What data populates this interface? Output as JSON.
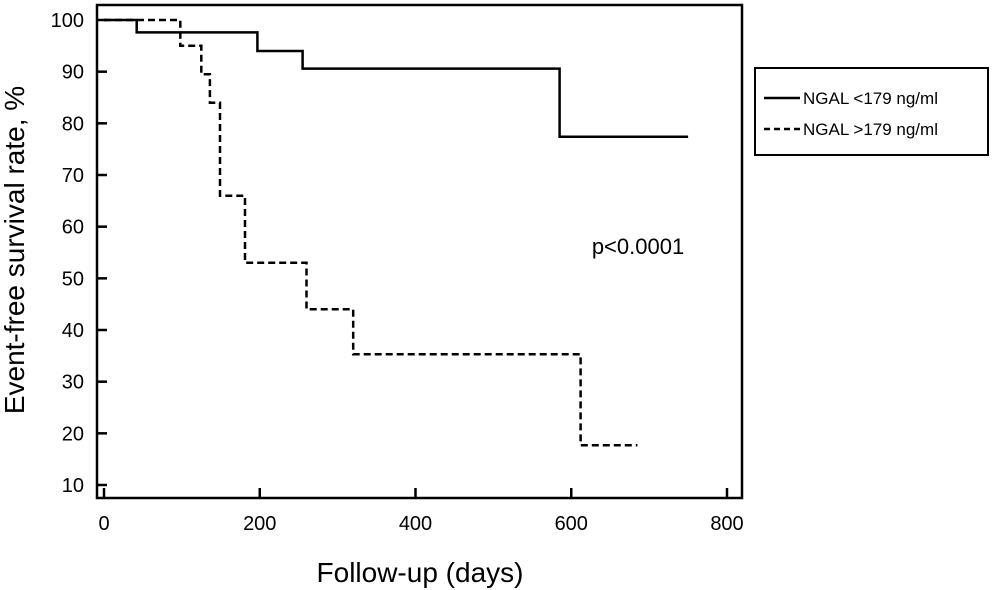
{
  "chart_data": {
    "type": "line",
    "subtype": "kaplan-meier step curves",
    "xlabel": "Follow-up (days)",
    "ylabel": "Event-free survival rate, %",
    "xlim": [
      0,
      800
    ],
    "ylim": [
      8,
      100
    ],
    "xticks": [
      0,
      200,
      400,
      600,
      800
    ],
    "yticks": [
      10,
      20,
      30,
      40,
      50,
      60,
      70,
      80,
      90,
      100
    ],
    "grid": false,
    "legend_position": "right, outside plot",
    "annotation": "p<0.0001",
    "series": [
      {
        "name": "NGAL <179 ng/ml",
        "line_style": "solid",
        "steps": [
          [
            0,
            100
          ],
          [
            42,
            97.6
          ],
          [
            197,
            94
          ],
          [
            255,
            90.6
          ],
          [
            585,
            77.4
          ],
          [
            750,
            77.4
          ]
        ]
      },
      {
        "name": "NGAL >179 ng/ml",
        "line_style": "dashed",
        "steps": [
          [
            0,
            100
          ],
          [
            98,
            95
          ],
          [
            125,
            89.5
          ],
          [
            136,
            84
          ],
          [
            149,
            66
          ],
          [
            181,
            53
          ],
          [
            260,
            44
          ],
          [
            320,
            35.3
          ],
          [
            612,
            17.7
          ],
          [
            685,
            17.7
          ]
        ]
      }
    ]
  }
}
